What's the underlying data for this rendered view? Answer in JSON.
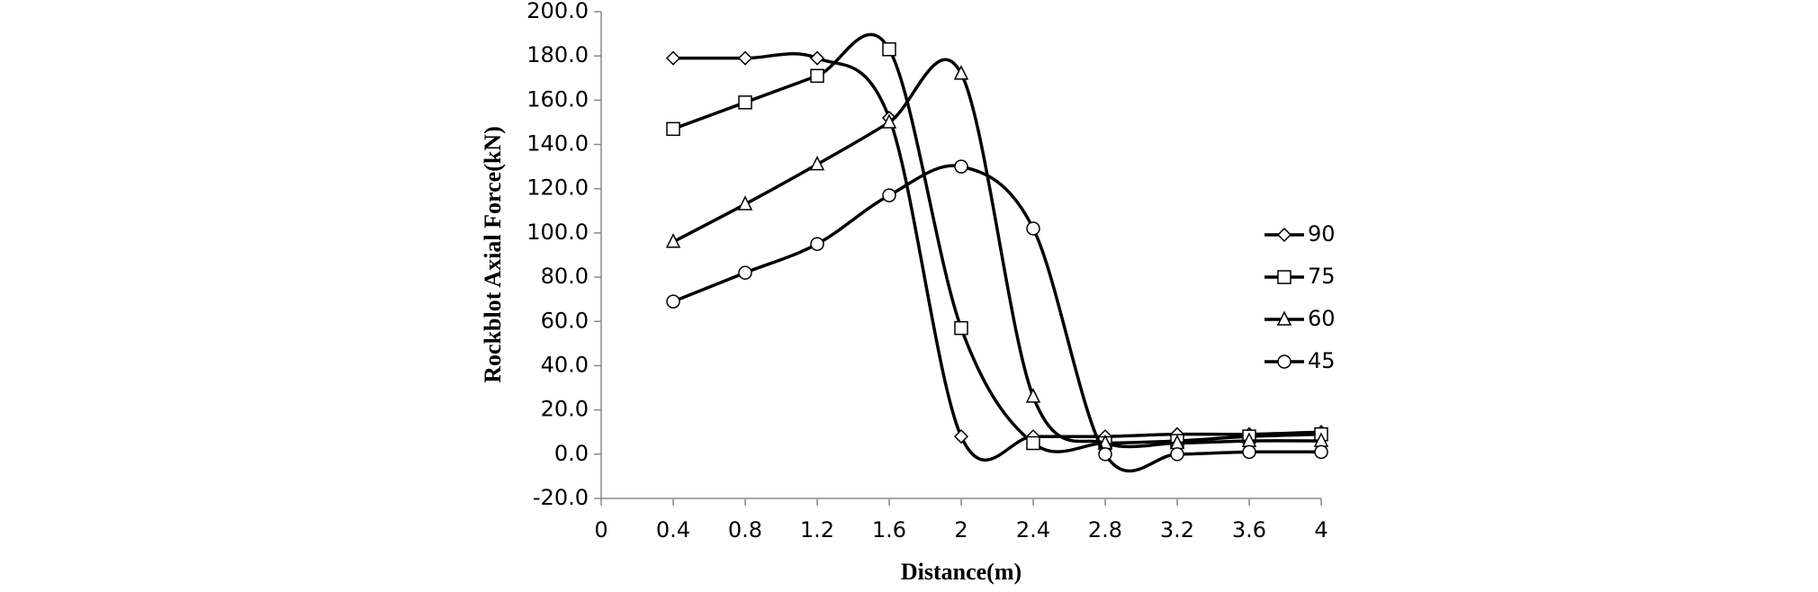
{
  "chart_data": {
    "type": "line",
    "xlabel": "Distance(m)",
    "ylabel": "Rockblot Axial Force(kN)",
    "x": [
      0.4,
      0.8,
      1.2,
      1.6,
      2,
      2.4,
      2.8,
      3.2,
      3.6,
      4
    ],
    "series": [
      {
        "name": "90",
        "color": "#000000",
        "marker": "diamond",
        "values": [
          179,
          179,
          179,
          152,
          8,
          8,
          8,
          9,
          9,
          10
        ]
      },
      {
        "name": "75",
        "color": "#000000",
        "marker": "square",
        "values": [
          147,
          159,
          171,
          183,
          57,
          5,
          5,
          6,
          8,
          9
        ]
      },
      {
        "name": "60",
        "color": "#000000",
        "marker": "triangle",
        "values": [
          96,
          113,
          131,
          150,
          172,
          26,
          5,
          5,
          6,
          6
        ]
      },
      {
        "name": "45",
        "color": "#000000",
        "marker": "circle",
        "values": [
          69,
          82,
          95,
          117,
          130,
          102,
          0,
          0,
          1,
          1
        ]
      }
    ],
    "xlim": [
      0,
      4
    ],
    "xticks": [
      0,
      0.4,
      0.8,
      1.2,
      1.6,
      2,
      2.4,
      2.8,
      3.2,
      3.6,
      4
    ],
    "ylim": [
      -20,
      200
    ],
    "yticks": [
      {
        "value": -20,
        "label": "-20.0"
      },
      {
        "value": 0,
        "label": "0.0"
      },
      {
        "value": 20,
        "label": "20.0"
      },
      {
        "value": 40,
        "label": "40.0"
      },
      {
        "value": 60,
        "label": "60.0"
      },
      {
        "value": 80,
        "label": "80.0"
      },
      {
        "value": 100,
        "label": "100.0"
      },
      {
        "value": 120,
        "label": "120.0"
      },
      {
        "value": 140,
        "label": "140.0"
      },
      {
        "value": 160,
        "label": "160.0"
      },
      {
        "value": 180,
        "label": "180.0"
      },
      {
        "value": 200,
        "label": "200.0"
      }
    ],
    "grid": false,
    "legend": "right"
  }
}
